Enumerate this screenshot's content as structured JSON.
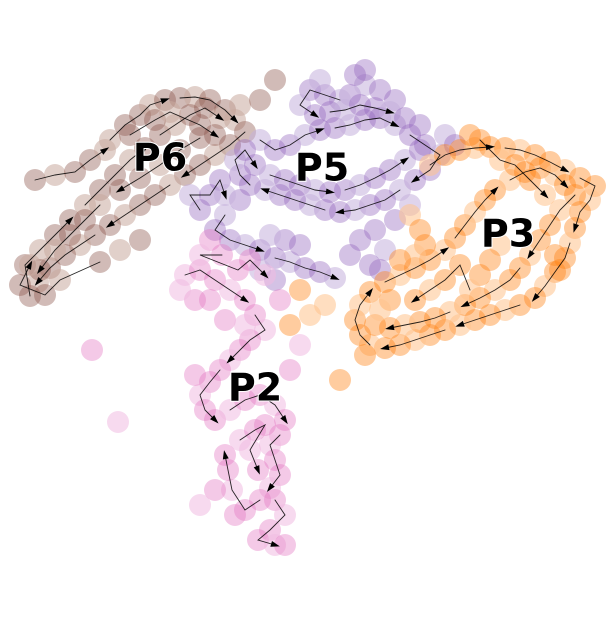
{
  "chart_data": {
    "type": "scatter",
    "title": "",
    "xlabel": "",
    "ylabel": "",
    "grid": false,
    "legend": "none",
    "clusters": [
      {
        "name": "P6",
        "color": "#8c564b",
        "light_color": "#c9a99e",
        "centroid": [
          160,
          160
        ],
        "points": [
          [
            110,
            140
          ],
          [
            125,
            125
          ],
          [
            140,
            115
          ],
          [
            150,
            105
          ],
          [
            165,
            100
          ],
          [
            180,
            98
          ],
          [
            195,
            97
          ],
          [
            210,
            100
          ],
          [
            225,
            110
          ],
          [
            235,
            120
          ],
          [
            245,
            132
          ],
          [
            230,
            145
          ],
          [
            215,
            155
          ],
          [
            200,
            165
          ],
          [
            185,
            175
          ],
          [
            170,
            185
          ],
          [
            155,
            195
          ],
          [
            140,
            205
          ],
          [
            125,
            215
          ],
          [
            110,
            225
          ],
          [
            95,
            235
          ],
          [
            80,
            245
          ],
          [
            65,
            255
          ],
          [
            50,
            268
          ],
          [
            38,
            282
          ],
          [
            30,
            296
          ],
          [
            25,
            265
          ],
          [
            40,
            250
          ],
          [
            55,
            235
          ],
          [
            70,
            220
          ],
          [
            85,
            205
          ],
          [
            100,
            190
          ],
          [
            115,
            175
          ],
          [
            130,
            160
          ],
          [
            145,
            148
          ],
          [
            160,
            135
          ],
          [
            175,
            125
          ],
          [
            190,
            115
          ],
          [
            205,
            108
          ],
          [
            220,
            118
          ],
          [
            200,
            138
          ],
          [
            180,
            150
          ],
          [
            160,
            165
          ],
          [
            140,
            178
          ],
          [
            120,
            190
          ],
          [
            100,
            205
          ],
          [
            85,
            220
          ],
          [
            70,
            235
          ],
          [
            55,
            250
          ],
          [
            40,
            270
          ],
          [
            35,
            180
          ],
          [
            55,
            175
          ],
          [
            75,
            172
          ],
          [
            90,
            160
          ],
          [
            105,
            150
          ],
          [
            130,
            135
          ],
          [
            155,
            120
          ],
          [
            170,
            112
          ],
          [
            200,
            125
          ],
          [
            215,
            135
          ],
          [
            240,
            105
          ],
          [
            260,
            100
          ],
          [
            275,
            80
          ],
          [
            120,
            250
          ],
          [
            140,
            240
          ],
          [
            100,
            262
          ],
          [
            60,
            280
          ],
          [
            45,
            295
          ],
          [
            20,
            285
          ],
          [
            30,
            265
          ]
        ]
      },
      {
        "name": "P5",
        "color": "#9467bd",
        "light_color": "#c5b0dd",
        "centroid": [
          322,
          170
        ],
        "points": [
          [
            260,
            140
          ],
          [
            275,
            150
          ],
          [
            290,
            145
          ],
          [
            305,
            135
          ],
          [
            320,
            130
          ],
          [
            335,
            128
          ],
          [
            350,
            125
          ],
          [
            365,
            120
          ],
          [
            380,
            118
          ],
          [
            395,
            125
          ],
          [
            410,
            135
          ],
          [
            425,
            145
          ],
          [
            440,
            155
          ],
          [
            430,
            170
          ],
          [
            415,
            180
          ],
          [
            400,
            190
          ],
          [
            385,
            200
          ],
          [
            370,
            205
          ],
          [
            355,
            210
          ],
          [
            340,
            212
          ],
          [
            325,
            210
          ],
          [
            310,
            205
          ],
          [
            295,
            200
          ],
          [
            280,
            195
          ],
          [
            265,
            190
          ],
          [
            250,
            185
          ],
          [
            240,
            175
          ],
          [
            235,
            160
          ],
          [
            245,
            150
          ],
          [
            255,
            165
          ],
          [
            270,
            175
          ],
          [
            285,
            180
          ],
          [
            300,
            185
          ],
          [
            315,
            190
          ],
          [
            330,
            192
          ],
          [
            345,
            190
          ],
          [
            360,
            185
          ],
          [
            375,
            178
          ],
          [
            390,
            170
          ],
          [
            405,
            160
          ],
          [
            420,
            150
          ],
          [
            350,
            95
          ],
          [
            365,
            85
          ],
          [
            380,
            90
          ],
          [
            395,
            100
          ],
          [
            340,
            100
          ],
          [
            325,
            95
          ],
          [
            310,
            90
          ],
          [
            300,
            105
          ],
          [
            315,
            115
          ],
          [
            330,
            112
          ],
          [
            345,
            110
          ],
          [
            360,
            105
          ],
          [
            375,
            108
          ],
          [
            390,
            112
          ],
          [
            405,
            118
          ],
          [
            420,
            125
          ],
          [
            445,
            135
          ],
          [
            455,
            145
          ],
          [
            240,
            200
          ],
          [
            225,
            215
          ],
          [
            215,
            230
          ],
          [
            230,
            240
          ],
          [
            245,
            245
          ],
          [
            260,
            250
          ],
          [
            275,
            258
          ],
          [
            290,
            262
          ],
          [
            305,
            268
          ],
          [
            320,
            272
          ],
          [
            335,
            278
          ],
          [
            300,
            245
          ],
          [
            285,
            240
          ],
          [
            270,
            235
          ],
          [
            360,
            240
          ],
          [
            375,
            230
          ],
          [
            385,
            250
          ],
          [
            370,
            265
          ],
          [
            350,
            255
          ],
          [
            260,
            270
          ],
          [
            275,
            280
          ],
          [
            200,
            210
          ],
          [
            190,
            195
          ],
          [
            210,
            195
          ],
          [
            220,
            180
          ],
          [
            225,
            195
          ],
          [
            380,
            270
          ],
          [
            395,
            220
          ],
          [
            410,
            205
          ],
          [
            365,
            70
          ],
          [
            355,
            75
          ],
          [
            320,
            80
          ]
        ]
      },
      {
        "name": "P3",
        "color": "#ff7f0e",
        "light_color": "#ffc38c",
        "centroid": [
          508,
          236
        ],
        "points": [
          [
            430,
            165
          ],
          [
            445,
            155
          ],
          [
            460,
            150
          ],
          [
            475,
            148
          ],
          [
            490,
            147
          ],
          [
            505,
            148
          ],
          [
            520,
            150
          ],
          [
            535,
            155
          ],
          [
            550,
            162
          ],
          [
            565,
            170
          ],
          [
            580,
            178
          ],
          [
            595,
            186
          ],
          [
            590,
            200
          ],
          [
            580,
            212
          ],
          [
            575,
            228
          ],
          [
            570,
            243
          ],
          [
            565,
            258
          ],
          [
            555,
            272
          ],
          [
            545,
            286
          ],
          [
            535,
            298
          ],
          [
            520,
            305
          ],
          [
            505,
            310
          ],
          [
            490,
            315
          ],
          [
            475,
            320
          ],
          [
            460,
            325
          ],
          [
            445,
            330
          ],
          [
            430,
            335
          ],
          [
            415,
            340
          ],
          [
            400,
            345
          ],
          [
            385,
            348
          ],
          [
            370,
            345
          ],
          [
            360,
            335
          ],
          [
            355,
            320
          ],
          [
            360,
            305
          ],
          [
            370,
            292
          ],
          [
            385,
            282
          ],
          [
            400,
            275
          ],
          [
            415,
            268
          ],
          [
            430,
            260
          ],
          [
            445,
            250
          ],
          [
            455,
            238
          ],
          [
            465,
            225
          ],
          [
            475,
            212
          ],
          [
            485,
            200
          ],
          [
            495,
            190
          ],
          [
            510,
            180
          ],
          [
            525,
            172
          ],
          [
            540,
            168
          ],
          [
            555,
            175
          ],
          [
            565,
            185
          ],
          [
            575,
            195
          ],
          [
            560,
            210
          ],
          [
            550,
            225
          ],
          [
            540,
            240
          ],
          [
            530,
            255
          ],
          [
            520,
            268
          ],
          [
            510,
            280
          ],
          [
            495,
            290
          ],
          [
            480,
            298
          ],
          [
            465,
            305
          ],
          [
            450,
            312
          ],
          [
            435,
            318
          ],
          [
            420,
            322
          ],
          [
            405,
            325
          ],
          [
            390,
            328
          ],
          [
            375,
            325
          ],
          [
            410,
            215
          ],
          [
            420,
            230
          ],
          [
            425,
            245
          ],
          [
            415,
            255
          ],
          [
            400,
            260
          ],
          [
            390,
            300
          ],
          [
            380,
            310
          ],
          [
            365,
            355
          ],
          [
            340,
            380
          ],
          [
            325,
            305
          ],
          [
            300,
            290
          ],
          [
            290,
            325
          ],
          [
            310,
            315
          ],
          [
            470,
            135
          ],
          [
            480,
            140
          ],
          [
            500,
            160
          ],
          [
            515,
            165
          ],
          [
            530,
            180
          ],
          [
            545,
            195
          ],
          [
            555,
            255
          ],
          [
            560,
            270
          ],
          [
            500,
            245
          ],
          [
            490,
            260
          ],
          [
            480,
            275
          ],
          [
            470,
            290
          ],
          [
            460,
            265
          ],
          [
            445,
            280
          ],
          [
            430,
            290
          ],
          [
            415,
            300
          ]
        ]
      },
      {
        "name": "P2",
        "color": "#e377c2",
        "light_color": "#f1bbe1",
        "centroid": [
          255,
          390
        ],
        "points": [
          [
            185,
            275
          ],
          [
            200,
            270
          ],
          [
            215,
            280
          ],
          [
            230,
            290
          ],
          [
            245,
            300
          ],
          [
            255,
            315
          ],
          [
            265,
            330
          ],
          [
            250,
            340
          ],
          [
            240,
            350
          ],
          [
            230,
            360
          ],
          [
            220,
            370
          ],
          [
            210,
            382
          ],
          [
            200,
            395
          ],
          [
            205,
            410
          ],
          [
            215,
            420
          ],
          [
            230,
            410
          ],
          [
            245,
            400
          ],
          [
            260,
            395
          ],
          [
            275,
            405
          ],
          [
            285,
            420
          ],
          [
            280,
            435
          ],
          [
            270,
            445
          ],
          [
            275,
            460
          ],
          [
            280,
            475
          ],
          [
            270,
            488
          ],
          [
            260,
            500
          ],
          [
            245,
            510
          ],
          [
            232,
            490
          ],
          [
            228,
            470
          ],
          [
            225,
            455
          ],
          [
            240,
            440
          ],
          [
            255,
            430
          ],
          [
            265,
            425
          ],
          [
            250,
            450
          ],
          [
            258,
            470
          ],
          [
            275,
            500
          ],
          [
            285,
            515
          ],
          [
            270,
            530
          ],
          [
            258,
            540
          ],
          [
            275,
            545
          ],
          [
            285,
            545
          ],
          [
            215,
            490
          ],
          [
            200,
            505
          ],
          [
            235,
            515
          ],
          [
            92,
            350
          ],
          [
            118,
            422
          ],
          [
            195,
            375
          ],
          [
            290,
            370
          ],
          [
            300,
            345
          ],
          [
            210,
            240
          ],
          [
            222,
            255
          ],
          [
            200,
            255
          ],
          [
            238,
            270
          ],
          [
            250,
            260
          ],
          [
            265,
            275
          ],
          [
            280,
            300
          ],
          [
            195,
            300
          ],
          [
            180,
            290
          ],
          [
            210,
            300
          ],
          [
            225,
            320
          ],
          [
            245,
            325
          ]
        ]
      }
    ]
  }
}
